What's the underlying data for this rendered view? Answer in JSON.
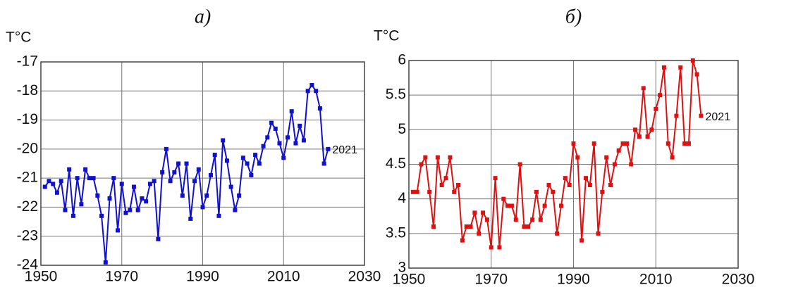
{
  "chart_data": [
    {
      "type": "line",
      "title": "а)",
      "y_label": "T°C",
      "annotation": "2021",
      "color": "#1010d0",
      "grid": true,
      "x": [
        1951,
        1952,
        1953,
        1954,
        1955,
        1956,
        1957,
        1958,
        1959,
        1960,
        1961,
        1962,
        1963,
        1964,
        1965,
        1966,
        1967,
        1968,
        1969,
        1970,
        1971,
        1972,
        1973,
        1974,
        1975,
        1976,
        1977,
        1978,
        1979,
        1980,
        1981,
        1982,
        1983,
        1984,
        1985,
        1986,
        1987,
        1988,
        1989,
        1990,
        1991,
        1992,
        1993,
        1994,
        1995,
        1996,
        1997,
        1998,
        1999,
        2000,
        2001,
        2002,
        2003,
        2004,
        2005,
        2006,
        2007,
        2008,
        2009,
        2010,
        2011,
        2012,
        2013,
        2014,
        2015,
        2016,
        2017,
        2018,
        2019,
        2020,
        2021
      ],
      "values": [
        -21.3,
        -21.1,
        -21.2,
        -21.5,
        -21.1,
        -22.1,
        -20.7,
        -22.3,
        -21.0,
        -21.9,
        -20.7,
        -21.0,
        -21.0,
        -21.6,
        -22.3,
        -23.9,
        -21.7,
        -21.0,
        -22.8,
        -21.2,
        -22.2,
        -22.1,
        -21.3,
        -22.1,
        -21.7,
        -21.8,
        -21.2,
        -21.1,
        -23.1,
        -20.8,
        -20.0,
        -21.1,
        -20.8,
        -20.5,
        -21.6,
        -20.5,
        -22.4,
        -21.1,
        -20.7,
        -22.0,
        -21.6,
        -20.9,
        -20.2,
        -22.3,
        -19.7,
        -20.4,
        -21.3,
        -22.1,
        -21.6,
        -20.3,
        -20.5,
        -20.9,
        -20.2,
        -20.5,
        -19.9,
        -19.6,
        -19.1,
        -19.3,
        -19.8,
        -20.3,
        -19.6,
        -18.7,
        -19.8,
        -19.2,
        -19.7,
        -18.0,
        -17.8,
        -18.0,
        -18.6,
        -20.5,
        -20.0
      ],
      "xlim": [
        1950,
        2030
      ],
      "xticks": [
        1950,
        1970,
        1990,
        2010,
        2030
      ],
      "ylim": [
        -24,
        -17
      ],
      "yticks": [
        -24,
        -23,
        -22,
        -21,
        -20,
        -19,
        -18,
        -17
      ]
    },
    {
      "type": "line",
      "title": "б)",
      "y_label": "T°C",
      "annotation": "2021",
      "color": "#e01010",
      "grid": true,
      "x": [
        1951,
        1952,
        1953,
        1954,
        1955,
        1956,
        1957,
        1958,
        1959,
        1960,
        1961,
        1962,
        1963,
        1964,
        1965,
        1966,
        1967,
        1968,
        1969,
        1970,
        1971,
        1972,
        1973,
        1974,
        1975,
        1976,
        1977,
        1978,
        1979,
        1980,
        1981,
        1982,
        1983,
        1984,
        1985,
        1986,
        1987,
        1988,
        1989,
        1990,
        1991,
        1992,
        1993,
        1994,
        1995,
        1996,
        1997,
        1998,
        1999,
        2000,
        2001,
        2002,
        2003,
        2004,
        2005,
        2006,
        2007,
        2008,
        2009,
        2010,
        2011,
        2012,
        2013,
        2014,
        2015,
        2016,
        2017,
        2018,
        2019,
        2020,
        2021
      ],
      "values": [
        4.1,
        4.1,
        4.5,
        4.6,
        4.1,
        3.6,
        4.6,
        4.2,
        4.3,
        4.6,
        4.1,
        4.2,
        3.4,
        3.6,
        3.6,
        3.8,
        3.5,
        3.8,
        3.7,
        3.3,
        4.3,
        3.3,
        4.0,
        3.9,
        3.9,
        3.7,
        4.5,
        3.6,
        3.6,
        3.7,
        4.1,
        3.7,
        3.9,
        4.2,
        4.1,
        3.5,
        3.9,
        4.3,
        4.2,
        4.8,
        4.6,
        3.4,
        4.3,
        4.2,
        4.8,
        3.5,
        4.1,
        4.6,
        4.2,
        4.5,
        4.7,
        4.8,
        4.8,
        4.5,
        5.0,
        4.9,
        5.6,
        4.9,
        5.0,
        5.3,
        5.5,
        5.9,
        4.8,
        4.6,
        5.2,
        5.9,
        4.8,
        4.8,
        6.0,
        5.8,
        5.2
      ],
      "xlim": [
        1950,
        2030
      ],
      "xticks": [
        1950,
        1970,
        1990,
        2010,
        2030
      ],
      "ylim": [
        3,
        6
      ],
      "yticks": [
        3,
        3.5,
        4,
        4.5,
        5,
        5.5,
        6
      ]
    }
  ]
}
